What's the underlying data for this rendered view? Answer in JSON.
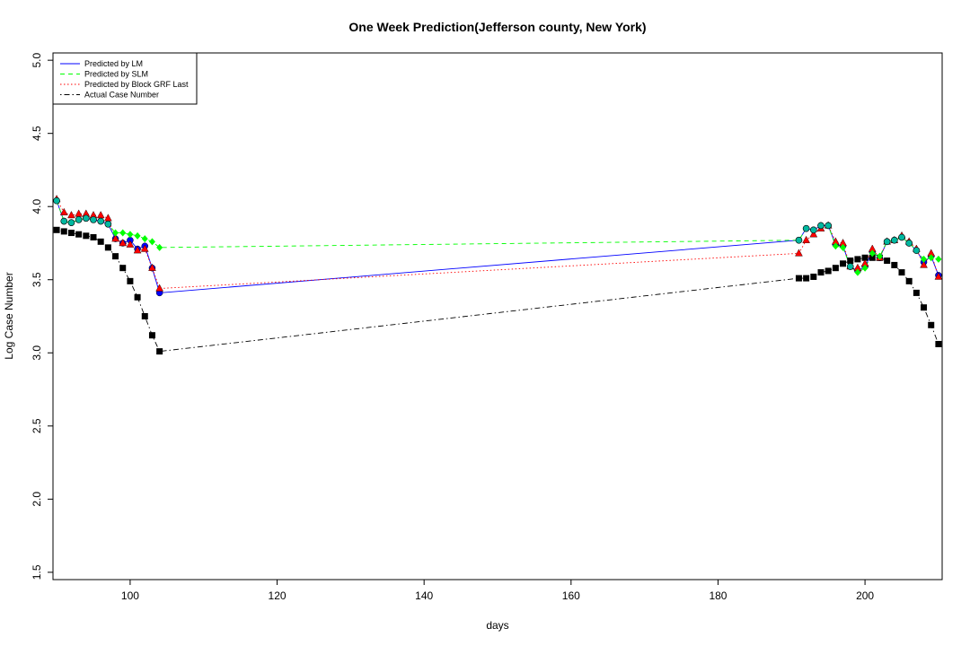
{
  "chart_data": {
    "type": "line",
    "title": "One Week Prediction(Jefferson county, New York)",
    "xlabel": "days",
    "ylabel": "Log Case Number",
    "xlim": [
      89.5,
      210.5
    ],
    "ylim": [
      1.45,
      5.05
    ],
    "x_ticks": [
      100,
      120,
      140,
      160,
      180,
      200
    ],
    "y_ticks": [
      1.5,
      2.0,
      2.5,
      3.0,
      3.5,
      4.0,
      4.5,
      5.0
    ],
    "x_tick_labels": [
      "100",
      "120",
      "140",
      "160",
      "180",
      "200"
    ],
    "y_tick_labels": [
      "1.5",
      "2.0",
      "2.5",
      "3.0",
      "3.5",
      "4.0",
      "4.5",
      "5.0"
    ],
    "legend_position": "top-left",
    "grid": false,
    "x": [
      90,
      91,
      92,
      93,
      94,
      95,
      96,
      97,
      98,
      99,
      100,
      101,
      102,
      103,
      104,
      191,
      192,
      193,
      194,
      195,
      196,
      197,
      198,
      199,
      200,
      201,
      202,
      203,
      204,
      205,
      206,
      207,
      208,
      209,
      210
    ],
    "series": [
      {
        "name": "Predicted by LM",
        "color": "#0000ff",
        "dash": "solid",
        "marker": "circle-blue",
        "values": [
          4.04,
          3.9,
          3.89,
          3.91,
          3.92,
          3.91,
          3.9,
          3.88,
          3.78,
          3.75,
          3.77,
          3.71,
          3.73,
          3.58,
          3.41,
          3.77,
          3.85,
          3.84,
          3.87,
          3.87,
          3.74,
          3.73,
          3.59,
          3.56,
          3.59,
          3.69,
          3.65,
          3.76,
          3.77,
          3.79,
          3.75,
          3.7,
          3.62,
          3.66,
          3.53
        ]
      },
      {
        "name": "Predicted by SLM",
        "color": "#00ff00",
        "dash": "dashed",
        "marker": "diamond-green",
        "values": [
          4.04,
          3.9,
          3.89,
          3.91,
          3.92,
          3.91,
          3.9,
          3.88,
          3.82,
          3.82,
          3.81,
          3.8,
          3.78,
          3.76,
          3.72,
          3.77,
          3.85,
          3.84,
          3.87,
          3.87,
          3.73,
          3.72,
          3.59,
          3.55,
          3.58,
          3.68,
          3.66,
          3.76,
          3.77,
          3.79,
          3.75,
          3.7,
          3.64,
          3.65,
          3.64
        ]
      },
      {
        "name": "Predicted by Block GRF Last",
        "color": "#ff0000",
        "dash": "dotted",
        "marker": "triangle-red",
        "values": [
          4.05,
          3.96,
          3.94,
          3.95,
          3.95,
          3.94,
          3.94,
          3.92,
          3.78,
          3.75,
          3.74,
          3.7,
          3.71,
          3.58,
          3.44,
          3.68,
          3.77,
          3.81,
          3.85,
          3.87,
          3.76,
          3.75,
          3.59,
          3.58,
          3.61,
          3.71,
          3.65,
          3.76,
          3.77,
          3.8,
          3.76,
          3.71,
          3.6,
          3.68,
          3.52
        ]
      },
      {
        "name": "Actual Case Number",
        "color": "#000000",
        "dash": "dotdash",
        "marker": "square-black",
        "values": [
          3.84,
          3.83,
          3.82,
          3.81,
          3.8,
          3.79,
          3.76,
          3.72,
          3.66,
          3.58,
          3.49,
          3.38,
          3.25,
          3.12,
          3.01,
          3.51,
          3.51,
          3.52,
          3.55,
          3.56,
          3.58,
          3.61,
          3.63,
          3.64,
          3.65,
          3.65,
          3.65,
          3.63,
          3.6,
          3.55,
          3.49,
          3.41,
          3.31,
          3.19,
          3.06
        ]
      }
    ]
  }
}
